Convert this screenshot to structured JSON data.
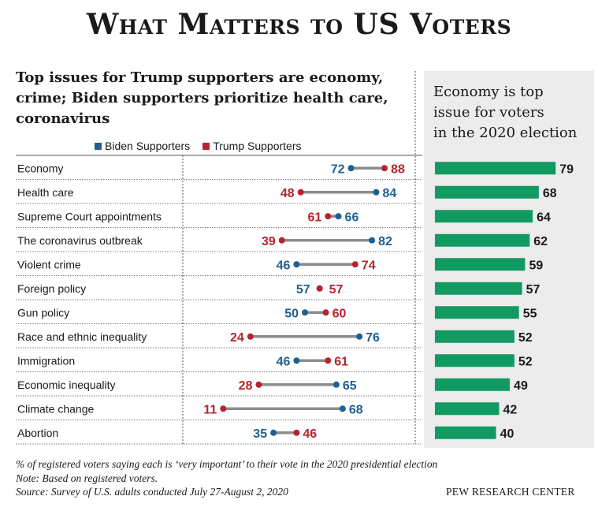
{
  "title": "What Matters to US Voters",
  "subtitle_lines": [
    "Top issues for Trump supporters are economy,",
    "crime; Biden supporters prioritize health care,",
    "coronavirus"
  ],
  "panel_title_lines": [
    "Economy is top",
    "issue for voters",
    "in the 2020 election"
  ],
  "colors": {
    "biden": "#1f5f95",
    "trump": "#b8232f",
    "bar": "#129a63",
    "connector": "#8c8c8c"
  },
  "chart_data": [
    {
      "type": "dot-range",
      "legend": [
        "Biden Supporters",
        "Trump Supporters"
      ],
      "categories": [
        "Economy",
        "Health care",
        "Supreme Court appointments",
        "The coronavirus outbreak",
        "Violent crime",
        "Foreign policy",
        "Gun policy",
        "Race and ethnic inequality",
        "Immigration",
        "Economic inequality",
        "Climate change",
        "Abortion"
      ],
      "series": [
        {
          "name": "Biden Supporters",
          "values": [
            72,
            84,
            66,
            82,
            46,
            57,
            50,
            76,
            46,
            65,
            68,
            35
          ]
        },
        {
          "name": "Trump Supporters",
          "values": [
            88,
            48,
            61,
            39,
            74,
            57,
            60,
            24,
            61,
            28,
            11,
            46
          ]
        }
      ]
    },
    {
      "type": "bar",
      "title": "Economy is top issue for voters in the 2020 election",
      "categories": [
        "Economy",
        "Health care",
        "Supreme Court appointments",
        "The coronavirus outbreak",
        "Violent crime",
        "Foreign policy",
        "Gun policy",
        "Race and ethnic inequality",
        "Immigration",
        "Economic inequality",
        "Climate change",
        "Abortion"
      ],
      "values": [
        79,
        68,
        64,
        62,
        59,
        57,
        55,
        52,
        52,
        49,
        42,
        40
      ]
    }
  ],
  "footer": {
    "note_1": "% of registered voters saying each is ‘very important’ to their vote in the 2020 presidential election",
    "note_2": "Note: Based on registered voters.",
    "source": "Source: Survey of U.S.  adults conducted July 27-August 2, 2020",
    "credit": "PEW RESEARCH CENTER"
  }
}
